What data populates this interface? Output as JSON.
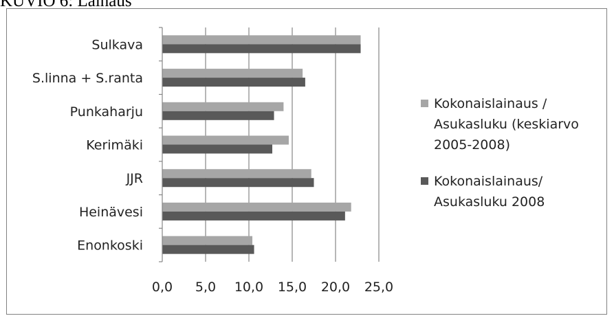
{
  "caption": "KUVIO 6: Lainaus",
  "colors": {
    "series1": "#a6a6a6",
    "series2": "#595959",
    "axis": "#868686"
  },
  "chart_data": {
    "type": "bar",
    "orientation": "horizontal",
    "categories": [
      "Sulkava",
      "S.linna + S.ranta",
      "Punkaharju",
      "Kerimäki",
      "JJR",
      "Heinävesi",
      "Enonkoski"
    ],
    "series": [
      {
        "name": "Kokonaislainaus / Asukasluku (keskiarvo 2005-2008)",
        "values": [
          22.9,
          16.2,
          14.0,
          14.6,
          17.2,
          21.8,
          10.4
        ]
      },
      {
        "name": "Kokonaislainaus/ Asukasluku 2008",
        "values": [
          22.9,
          16.5,
          12.9,
          12.7,
          17.5,
          21.1,
          10.6
        ]
      }
    ],
    "legend_lines": [
      [
        "Kokonaislainaus /",
        "Asukasluku (keskiarvo",
        "2005-2008)"
      ],
      [
        "Kokonaislainaus/",
        "Asukasluku 2008"
      ]
    ],
    "xlim": [
      0,
      25
    ],
    "xticks": [
      "0,0",
      "5,0",
      "10,0",
      "15,0",
      "20,0",
      "25,0"
    ],
    "legend_position": "right",
    "grid": "vertical"
  }
}
